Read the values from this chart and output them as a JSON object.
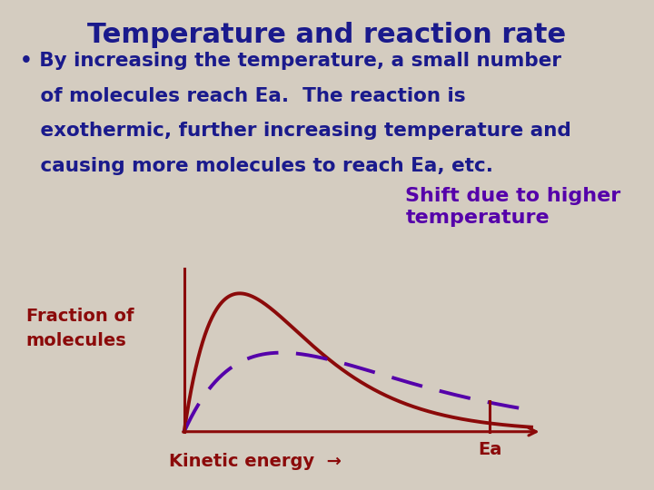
{
  "title": "Temperature and reaction rate",
  "title_color": "#1a1a8c",
  "title_fontsize": 22,
  "body_line1": "• By increasing the temperature, a small number",
  "body_line2": "   of molecules reach Ea.  The reaction is",
  "body_line3": "   exothermic, further increasing temperature and",
  "body_line4": "   causing more molecules to reach Ea, etc.",
  "body_color": "#1a1a8c",
  "body_fontsize": 15.5,
  "background_color": "#d4ccc0",
  "curve1_color": "#8b0a0a",
  "curve2_color": "#5500aa",
  "axis_color": "#8b0a0a",
  "label_fraction_line1": "Fraction of",
  "label_fraction_line2": "molecules",
  "label_kinetic": "Kinetic energy",
  "label_ea": "Ea",
  "label_shift_line1": "Shift due to higher",
  "label_shift_line2": "temperature",
  "label_color_dark": "#8b0a0a",
  "label_color_purple": "#5500aa",
  "line_fontsize": 14,
  "shift_fontsize": 16
}
